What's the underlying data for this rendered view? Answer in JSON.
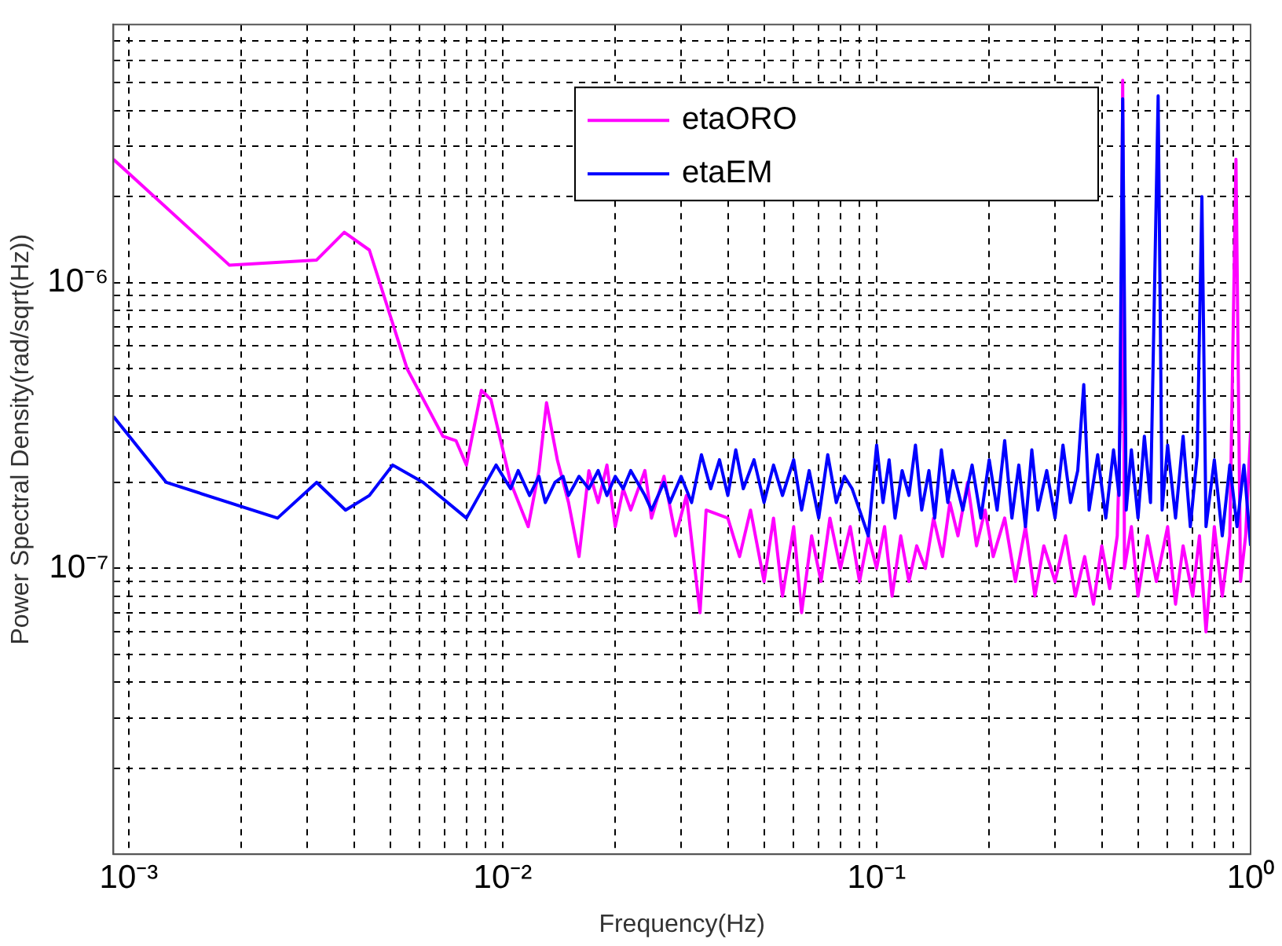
{
  "chart_data": {
    "type": "line",
    "xlabel": "Frequency(Hz)",
    "ylabel": "Power Spectral Density(rad/sqrt(Hz))",
    "log": "xy",
    "grid": true,
    "legend": "top right",
    "line_style": "solid",
    "marker": "none",
    "xlim": [
      0.00091,
      1
    ],
    "ylim": [
      1e-08,
      8e-06
    ],
    "xticks": [
      {
        "value": 0.001,
        "label": "10⁻³"
      },
      {
        "value": 0.002,
        "label": null
      },
      {
        "value": 0.003,
        "label": null
      },
      {
        "value": 0.004,
        "label": null
      },
      {
        "value": 0.005,
        "label": null
      },
      {
        "value": 0.006,
        "label": null
      },
      {
        "value": 0.007,
        "label": null
      },
      {
        "value": 0.008,
        "label": null
      },
      {
        "value": 0.009,
        "label": null
      },
      {
        "value": 0.01,
        "label": "10⁻²"
      },
      {
        "value": 0.02,
        "label": null
      },
      {
        "value": 0.03,
        "label": null
      },
      {
        "value": 0.04,
        "label": null
      },
      {
        "value": 0.05,
        "label": null
      },
      {
        "value": 0.06,
        "label": null
      },
      {
        "value": 0.07,
        "label": null
      },
      {
        "value": 0.08,
        "label": null
      },
      {
        "value": 0.09,
        "label": null
      },
      {
        "value": 0.1,
        "label": "10⁻¹"
      },
      {
        "value": 0.2,
        "label": null
      },
      {
        "value": 0.3,
        "label": null
      },
      {
        "value": 0.4,
        "label": null
      },
      {
        "value": 0.5,
        "label": null
      },
      {
        "value": 0.6,
        "label": null
      },
      {
        "value": 0.7,
        "label": null
      },
      {
        "value": 0.8,
        "label": null
      },
      {
        "value": 0.9,
        "label": null
      },
      {
        "value": 1,
        "label": "10⁰"
      }
    ],
    "yticks": [
      {
        "value": 2e-08,
        "label": null
      },
      {
        "value": 3e-08,
        "label": null
      },
      {
        "value": 4e-08,
        "label": null
      },
      {
        "value": 5e-08,
        "label": null
      },
      {
        "value": 6e-08,
        "label": null
      },
      {
        "value": 7e-08,
        "label": null
      },
      {
        "value": 8e-08,
        "label": null
      },
      {
        "value": 9e-08,
        "label": null
      },
      {
        "value": 1e-07,
        "label": "10⁻⁷"
      },
      {
        "value": 2e-07,
        "label": null
      },
      {
        "value": 3e-07,
        "label": null
      },
      {
        "value": 4e-07,
        "label": null
      },
      {
        "value": 5e-07,
        "label": null
      },
      {
        "value": 6e-07,
        "label": null
      },
      {
        "value": 7e-07,
        "label": null
      },
      {
        "value": 8e-07,
        "label": null
      },
      {
        "value": 9e-07,
        "label": null
      },
      {
        "value": 1e-06,
        "label": "10⁻⁶"
      },
      {
        "value": 2e-06,
        "label": null
      },
      {
        "value": 3e-06,
        "label": null
      },
      {
        "value": 4e-06,
        "label": null
      },
      {
        "value": 5e-06,
        "label": null
      },
      {
        "value": 6e-06,
        "label": null
      },
      {
        "value": 7e-06,
        "label": null
      }
    ],
    "series": [
      {
        "name": "etaORO",
        "color": "#ff00ff",
        "x": [
          0.00091,
          0.00186,
          0.00318,
          0.00377,
          0.0044,
          0.00555,
          0.00692,
          0.0075,
          0.008,
          0.00877,
          0.0093,
          0.0105,
          0.0117,
          0.0125,
          0.0131,
          0.014,
          0.015,
          0.016,
          0.017,
          0.018,
          0.019,
          0.02,
          0.021,
          0.022,
          0.024,
          0.025,
          0.027,
          0.029,
          0.031,
          0.0337,
          0.035,
          0.04,
          0.043,
          0.046,
          0.05,
          0.053,
          0.056,
          0.06,
          0.063,
          0.067,
          0.071,
          0.075,
          0.08,
          0.085,
          0.09,
          0.095,
          0.1,
          0.105,
          0.11,
          0.116,
          0.122,
          0.128,
          0.135,
          0.142,
          0.15,
          0.157,
          0.165,
          0.175,
          0.185,
          0.195,
          0.205,
          0.22,
          0.235,
          0.25,
          0.265,
          0.28,
          0.3,
          0.32,
          0.34,
          0.36,
          0.38,
          0.4,
          0.42,
          0.44,
          0.45,
          0.455,
          0.46,
          0.48,
          0.5,
          0.53,
          0.56,
          0.6,
          0.63,
          0.66,
          0.7,
          0.73,
          0.76,
          0.8,
          0.84,
          0.88,
          0.914,
          0.94,
          0.97,
          1
        ],
        "values": [
          2.7e-06,
          1.15e-06,
          1.2e-06,
          1.5e-06,
          1.3e-06,
          5e-07,
          2.9e-07,
          2.8e-07,
          2.3e-07,
          4.2e-07,
          3.9e-07,
          2e-07,
          1.4e-07,
          2.2e-07,
          3.8e-07,
          2.4e-07,
          1.7e-07,
          1.1e-07,
          2.2e-07,
          1.7e-07,
          2.3e-07,
          1.4e-07,
          1.9e-07,
          1.6e-07,
          2.2e-07,
          1.5e-07,
          2.1e-07,
          1.3e-07,
          1.8e-07,
          7e-08,
          1.6e-07,
          1.5e-07,
          1.1e-07,
          1.6e-07,
          9e-08,
          1.5e-07,
          8e-08,
          1.4e-07,
          7e-08,
          1.3e-07,
          9e-08,
          1.5e-07,
          1e-07,
          1.4e-07,
          9e-08,
          1.3e-07,
          1e-07,
          1.4e-07,
          8e-08,
          1.3e-07,
          9e-08,
          1.2e-07,
          1e-07,
          1.5e-07,
          1.1e-07,
          1.7e-07,
          1.3e-07,
          2e-07,
          1.2e-07,
          1.6e-07,
          1.1e-07,
          1.5e-07,
          9e-08,
          1.4e-07,
          8e-08,
          1.2e-07,
          9e-08,
          1.3e-07,
          8e-08,
          1.1e-07,
          7.5e-08,
          1.2e-07,
          8.5e-08,
          1.3e-07,
          4e-07,
          5.1e-06,
          1e-07,
          1.4e-07,
          8e-08,
          1.3e-07,
          9e-08,
          1.4e-07,
          7.5e-08,
          1.2e-07,
          8e-08,
          1.3e-07,
          6e-08,
          1.4e-07,
          8e-08,
          1.3e-07,
          2.7e-06,
          9e-08,
          1.3e-07,
          3e-07
        ]
      },
      {
        "name": "etaEM",
        "color": "#0000ff",
        "x": [
          0.00091,
          0.00126,
          0.0025,
          0.00318,
          0.0038,
          0.0044,
          0.00508,
          0.00613,
          0.008,
          0.0096,
          0.0105,
          0.011,
          0.0118,
          0.0125,
          0.013,
          0.0138,
          0.0145,
          0.015,
          0.016,
          0.017,
          0.018,
          0.019,
          0.02,
          0.021,
          0.022,
          0.024,
          0.025,
          0.027,
          0.028,
          0.03,
          0.032,
          0.034,
          0.036,
          0.038,
          0.04,
          0.042,
          0.044,
          0.047,
          0.05,
          0.053,
          0.056,
          0.06,
          0.063,
          0.066,
          0.07,
          0.074,
          0.078,
          0.082,
          0.086,
          0.09,
          0.095,
          0.1,
          0.104,
          0.108,
          0.112,
          0.117,
          0.122,
          0.127,
          0.132,
          0.138,
          0.143,
          0.149,
          0.155,
          0.16,
          0.17,
          0.18,
          0.19,
          0.2,
          0.21,
          0.22,
          0.23,
          0.24,
          0.25,
          0.26,
          0.27,
          0.285,
          0.3,
          0.315,
          0.33,
          0.345,
          0.358,
          0.37,
          0.39,
          0.41,
          0.43,
          0.445,
          0.455,
          0.465,
          0.48,
          0.5,
          0.52,
          0.54,
          0.566,
          0.58,
          0.6,
          0.63,
          0.66,
          0.69,
          0.72,
          0.741,
          0.76,
          0.8,
          0.84,
          0.88,
          0.92,
          0.96,
          1
        ],
        "values": [
          3.4e-07,
          2e-07,
          1.5e-07,
          2e-07,
          1.6e-07,
          1.8e-07,
          2.3e-07,
          2e-07,
          1.5e-07,
          2.3e-07,
          1.9e-07,
          2.2e-07,
          1.8e-07,
          2.1e-07,
          1.7e-07,
          2e-07,
          2.1e-07,
          1.8e-07,
          2.1e-07,
          1.9e-07,
          2.2e-07,
          1.8e-07,
          2.1e-07,
          1.9e-07,
          2.2e-07,
          1.8e-07,
          1.6e-07,
          2e-07,
          1.7e-07,
          2.1e-07,
          1.7e-07,
          2.5e-07,
          1.9e-07,
          2.4e-07,
          1.8e-07,
          2.6e-07,
          1.9e-07,
          2.4e-07,
          1.7e-07,
          2.3e-07,
          1.8e-07,
          2.4e-07,
          1.6e-07,
          2.2e-07,
          1.5e-07,
          2.5e-07,
          1.7e-07,
          2.1e-07,
          1.9e-07,
          1.6e-07,
          1.3e-07,
          2.7e-07,
          1.7e-07,
          2.4e-07,
          1.5e-07,
          2.2e-07,
          1.8e-07,
          2.7e-07,
          1.6e-07,
          2.2e-07,
          1.5e-07,
          2.6e-07,
          1.7e-07,
          2.2e-07,
          1.6e-07,
          2.3e-07,
          1.5e-07,
          2.4e-07,
          1.6e-07,
          2.8e-07,
          1.5e-07,
          2.3e-07,
          1.4e-07,
          2.6e-07,
          1.6e-07,
          2.2e-07,
          1.5e-07,
          2.7e-07,
          1.7e-07,
          2.2e-07,
          4.4e-07,
          1.6e-07,
          2.5e-07,
          1.5e-07,
          2.6e-07,
          1.8e-07,
          4.4e-06,
          1.6e-07,
          2.6e-07,
          1.5e-07,
          2.9e-07,
          1.7e-07,
          4.5e-06,
          1.6e-07,
          2.7e-07,
          1.5e-07,
          2.9e-07,
          1.4e-07,
          2.5e-07,
          2e-06,
          1.4e-07,
          2.4e-07,
          1.3e-07,
          2.3e-07,
          1.4e-07,
          2.3e-07,
          1.2e-07
        ]
      }
    ]
  }
}
